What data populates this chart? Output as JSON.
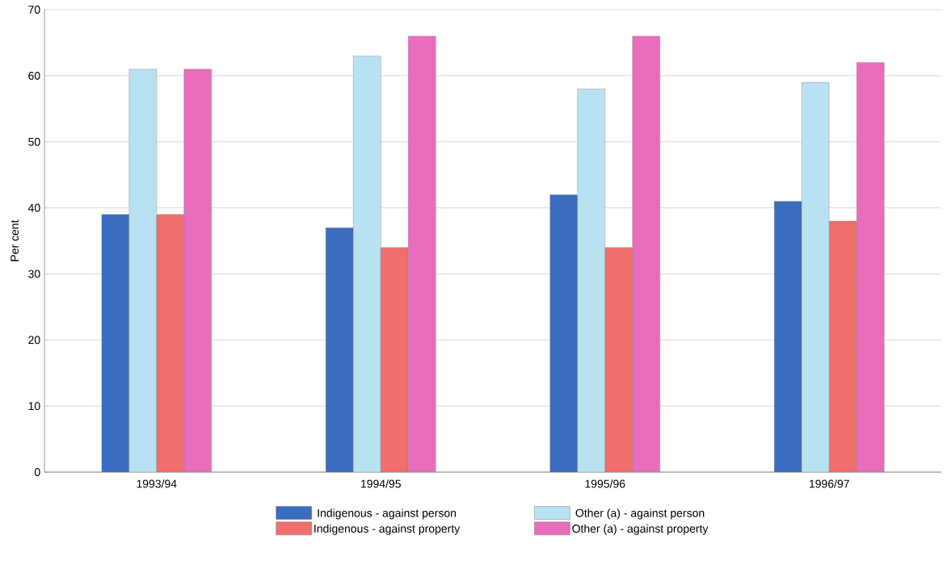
{
  "chart_data": {
    "type": "bar",
    "ylabel": "Per cent",
    "categories": [
      "1993/94",
      "1994/95",
      "1995/96",
      "1996/97"
    ],
    "series": [
      {
        "name": "Indigenous - against person",
        "color": "#3a6cc0",
        "values": [
          39,
          37,
          42,
          41
        ]
      },
      {
        "name": "Other (a) - against person",
        "color": "#b8e2f2",
        "values": [
          61,
          63,
          58,
          59
        ]
      },
      {
        "name": "Indigenous - against property",
        "color": "#f06e6e",
        "values": [
          39,
          34,
          34,
          38
        ]
      },
      {
        "name": "Other (a) - against property",
        "color": "#ea6cbc",
        "values": [
          61,
          66,
          66,
          62
        ]
      }
    ],
    "ylim": [
      0,
      70
    ],
    "yticks": [
      0,
      10,
      20,
      30,
      40,
      50,
      60,
      70
    ],
    "grid": "y",
    "legend": "bottom"
  }
}
